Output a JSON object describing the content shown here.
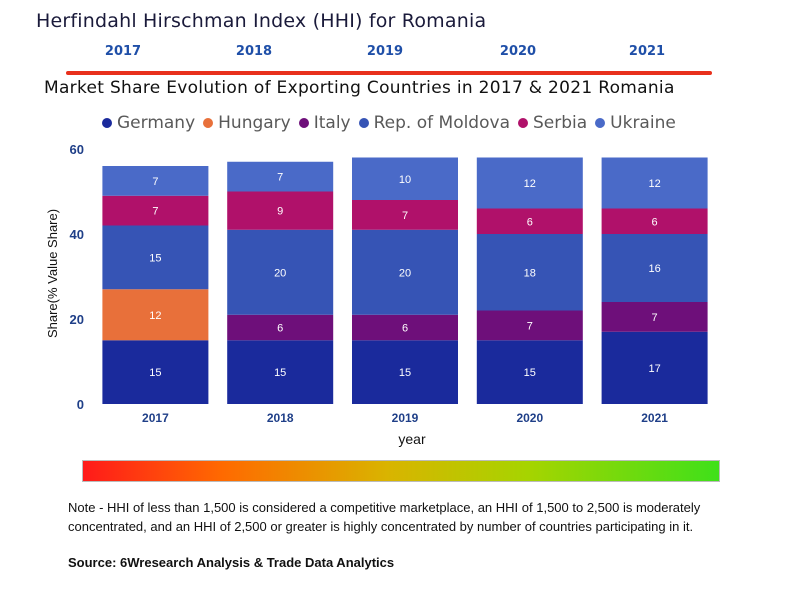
{
  "header": {
    "title": "Herfindahl Hirschman Index (HHI) for Romania",
    "years": [
      "2017",
      "2018",
      "2019",
      "2020",
      "2021"
    ]
  },
  "chart_data": {
    "type": "bar",
    "stacked": true,
    "title": "Market Share Evolution of Exporting Countries in 2017 & 2021 Romania",
    "xlabel": "year",
    "ylabel": "Share(% Value Share)",
    "ylim": [
      0,
      60
    ],
    "yticks": [
      "0",
      "20",
      "40",
      "60"
    ],
    "categories": [
      "2017",
      "2018",
      "2019",
      "2020",
      "2021"
    ],
    "series": [
      {
        "name": "Germany",
        "color": "#1a2a9c",
        "values": [
          15,
          15,
          15,
          15,
          17
        ]
      },
      {
        "name": "Hungary",
        "color": "#e8703a",
        "values": [
          12,
          0,
          0,
          0,
          0
        ]
      },
      {
        "name": "Italy",
        "color": "#6e0f7a",
        "values": [
          0,
          6,
          6,
          7,
          7
        ]
      },
      {
        "name": "Rep. of Moldova",
        "color": "#3654b5",
        "values": [
          15,
          20,
          20,
          18,
          16
        ]
      },
      {
        "name": "Serbia",
        "color": "#b0116a",
        "values": [
          7,
          9,
          7,
          6,
          6
        ]
      },
      {
        "name": "Ukraine",
        "color": "#4a6ac8",
        "values": [
          7,
          7,
          10,
          12,
          12
        ]
      }
    ],
    "legend_position": "top"
  },
  "footer": {
    "note": "Note - HHI of less than 1,500 is considered a competitive marketplace, an HHI of 1,500 to 2,500 is moderately concentrated, and an HHI of 2,500 or greater is highly concentrated by number of countries participating in it.",
    "source": "Source: 6Wresearch Analysis & Trade Data Analytics"
  }
}
